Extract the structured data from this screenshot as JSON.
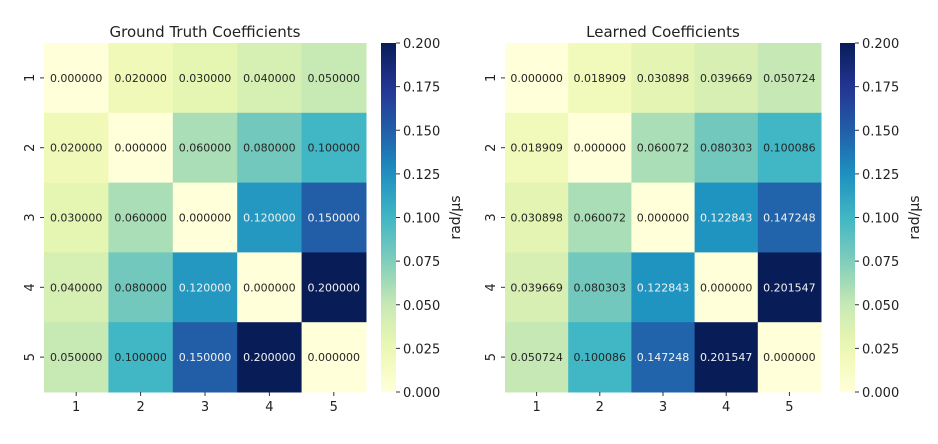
{
  "chart_data": [
    {
      "type": "heatmap",
      "title": "Ground Truth Coefficients",
      "x_tick_labels": [
        "1",
        "2",
        "3",
        "4",
        "5"
      ],
      "y_tick_labels": [
        "1",
        "2",
        "3",
        "4",
        "5"
      ],
      "values": [
        [
          0.0,
          0.02,
          0.03,
          0.04,
          0.05
        ],
        [
          0.02,
          0.0,
          0.06,
          0.08,
          0.1
        ],
        [
          0.03,
          0.06,
          0.0,
          0.12,
          0.15
        ],
        [
          0.04,
          0.08,
          0.12,
          0.0,
          0.2
        ],
        [
          0.05,
          0.1,
          0.15,
          0.2,
          0.0
        ]
      ],
      "annotation_labels": [
        [
          "0.000000",
          "0.020000",
          "0.030000",
          "0.040000",
          "0.050000"
        ],
        [
          "0.020000",
          "0.000000",
          "0.060000",
          "0.080000",
          "0.100000"
        ],
        [
          "0.030000",
          "0.060000",
          "0.000000",
          "0.120000",
          "0.150000"
        ],
        [
          "0.040000",
          "0.080000",
          "0.120000",
          "0.000000",
          "0.200000"
        ],
        [
          "0.050000",
          "0.100000",
          "0.150000",
          "0.200000",
          "0.000000"
        ]
      ],
      "colormap": "YlGnBu",
      "color_range": [
        0,
        0.2
      ],
      "colorbar": {
        "label": "rad/μs",
        "ticks": [
          "0.000",
          "0.025",
          "0.050",
          "0.075",
          "0.100",
          "0.125",
          "0.150",
          "0.175",
          "0.200"
        ]
      }
    },
    {
      "type": "heatmap",
      "title": "Learned Coefficients",
      "x_tick_labels": [
        "1",
        "2",
        "3",
        "4",
        "5"
      ],
      "y_tick_labels": [
        "1",
        "2",
        "3",
        "4",
        "5"
      ],
      "values": [
        [
          0.0,
          0.018909,
          0.030898,
          0.039669,
          0.050724
        ],
        [
          0.018909,
          0.0,
          0.060072,
          0.080303,
          0.100086
        ],
        [
          0.030898,
          0.060072,
          0.0,
          0.122843,
          0.147248
        ],
        [
          0.039669,
          0.080303,
          0.122843,
          0.0,
          0.201547
        ],
        [
          0.050724,
          0.100086,
          0.147248,
          0.201547,
          0.0
        ]
      ],
      "annotation_labels": [
        [
          "0.000000",
          "0.018909",
          "0.030898",
          "0.039669",
          "0.050724"
        ],
        [
          "0.018909",
          "0.000000",
          "0.060072",
          "0.080303",
          "0.100086"
        ],
        [
          "0.030898",
          "0.060072",
          "0.000000",
          "0.122843",
          "0.147248"
        ],
        [
          "0.039669",
          "0.080303",
          "0.122843",
          "0.000000",
          "0.201547"
        ],
        [
          "0.050724",
          "0.100086",
          "0.147248",
          "0.201547",
          "0.000000"
        ]
      ],
      "colormap": "YlGnBu",
      "color_range": [
        0,
        0.2
      ],
      "colorbar": {
        "label": "rad/μs",
        "ticks": [
          "0.000",
          "0.025",
          "0.050",
          "0.075",
          "0.100",
          "0.125",
          "0.150",
          "0.175",
          "0.200"
        ]
      }
    }
  ]
}
